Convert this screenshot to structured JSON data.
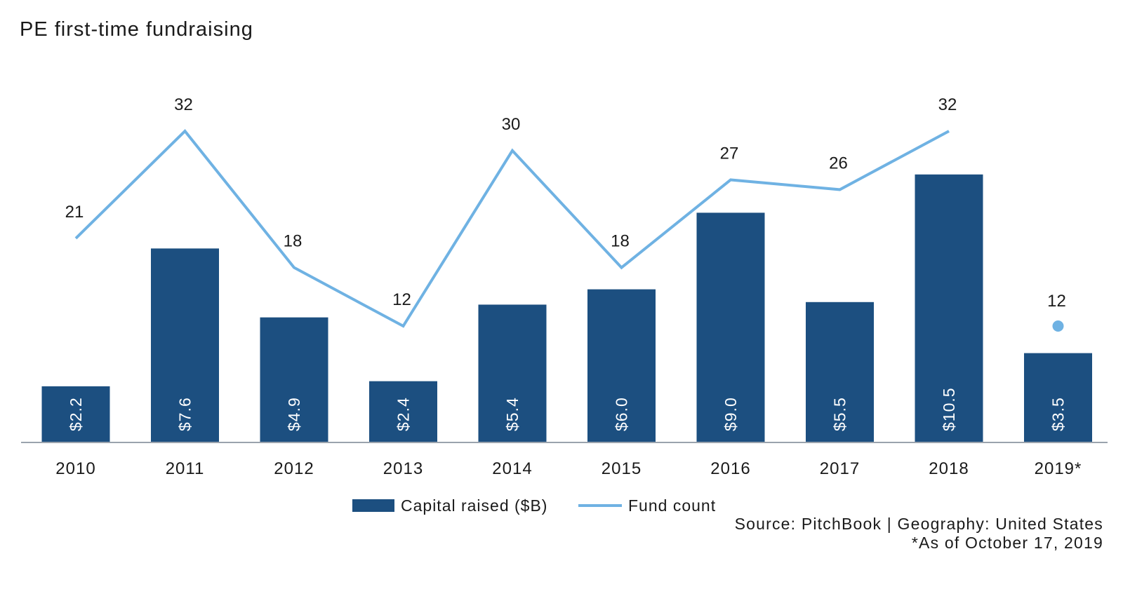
{
  "title": "PE first-time fundraising",
  "footer": {
    "source": "Source: PitchBook | Geography: United States",
    "note": "*As of October 17, 2019"
  },
  "colors": {
    "bar": "#1c4f80",
    "line": "#6fb2e3",
    "axis": "#9aa3ad",
    "bar_label": "#ffffff"
  },
  "chart_data": {
    "type": "bar",
    "title": "PE first-time fundraising",
    "categories": [
      "2010",
      "2011",
      "2012",
      "2013",
      "2014",
      "2015",
      "2016",
      "2017",
      "2018",
      "2019*"
    ],
    "series": [
      {
        "name": "Capital raised ($B)",
        "type": "bar",
        "values": [
          2.2,
          7.6,
          4.9,
          2.4,
          5.4,
          6.0,
          9.0,
          5.5,
          10.5,
          3.5
        ],
        "labels": [
          "$2.2",
          "$7.6",
          "$4.9",
          "$2.4",
          "$5.4",
          "$6.0",
          "$9.0",
          "$5.5",
          "$10.5",
          "$3.5"
        ],
        "color": "#1c4f80"
      },
      {
        "name": "Fund count",
        "type": "line",
        "values": [
          21,
          32,
          18,
          12,
          30,
          18,
          27,
          26,
          32,
          12
        ],
        "labels": [
          "21",
          "32",
          "18",
          "12",
          "30",
          "18",
          "27",
          "26",
          "32",
          "12"
        ],
        "color": "#6fb2e3",
        "note": "2019* shown as a separate point, not connected to the line"
      }
    ],
    "legend": {
      "position": "bottom",
      "entries": [
        "Capital raised ($B)",
        "Fund count"
      ]
    },
    "grid": false,
    "ylim_bars": [
      0,
      11
    ],
    "ylim_line": [
      0,
      35
    ]
  }
}
